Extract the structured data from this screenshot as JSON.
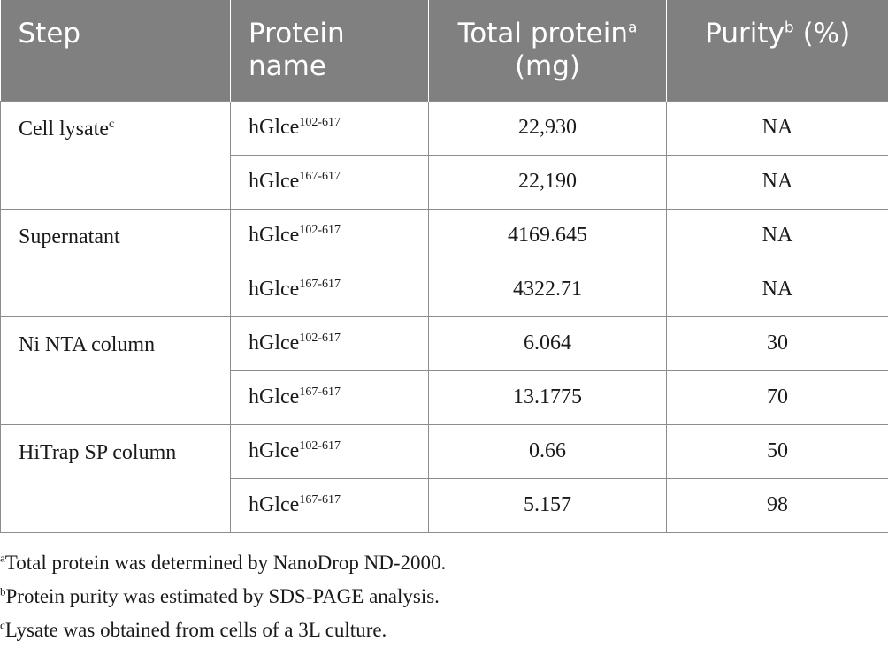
{
  "table": {
    "headers": {
      "step": "Step",
      "protein_name": "Protein name",
      "total_protein": "Total protein",
      "total_protein_sup": "a",
      "total_protein_unit": " (mg)",
      "purity": "Purity",
      "purity_sup": "b",
      "purity_unit": " (%)"
    },
    "groups": [
      {
        "step": "Cell lysate",
        "step_sup": "c",
        "rows": [
          {
            "protein": "hGlce",
            "protein_sup": "102-617",
            "total": "22,930",
            "purity": "NA"
          },
          {
            "protein": "hGlce",
            "protein_sup": "167-617",
            "total": "22,190",
            "purity": "NA"
          }
        ]
      },
      {
        "step": "Supernatant",
        "step_sup": "",
        "rows": [
          {
            "protein": "hGlce",
            "protein_sup": "102-617",
            "total": "4169.645",
            "purity": "NA"
          },
          {
            "protein": "hGlce",
            "protein_sup": "167-617",
            "total": "4322.71",
            "purity": "NA"
          }
        ]
      },
      {
        "step": "Ni NTA column",
        "step_sup": "",
        "rows": [
          {
            "protein": "hGlce",
            "protein_sup": "102-617",
            "total": "6.064",
            "purity": "30"
          },
          {
            "protein": "hGlce",
            "protein_sup": "167-617",
            "total": "13.1775",
            "purity": "70"
          }
        ]
      },
      {
        "step": "HiTrap SP column",
        "step_sup": "",
        "rows": [
          {
            "protein": "hGlce",
            "protein_sup": "102-617",
            "total": "0.66",
            "purity": "50"
          },
          {
            "protein": "hGlce",
            "protein_sup": "167-617",
            "total": "5.157",
            "purity": "98"
          }
        ]
      }
    ]
  },
  "footnotes": [
    {
      "mark": "a",
      "text": "Total protein was determined by NanoDrop ND-2000."
    },
    {
      "mark": "b",
      "text": "Protein purity was estimated by SDS-PAGE analysis."
    },
    {
      "mark": "c",
      "text": "Lysate was obtained from cells of a 3L culture."
    }
  ],
  "colors": {
    "header_bg": "#808080",
    "header_text": "#ffffff",
    "border": "#8c8c8c",
    "body_text": "#1a1a1a"
  }
}
